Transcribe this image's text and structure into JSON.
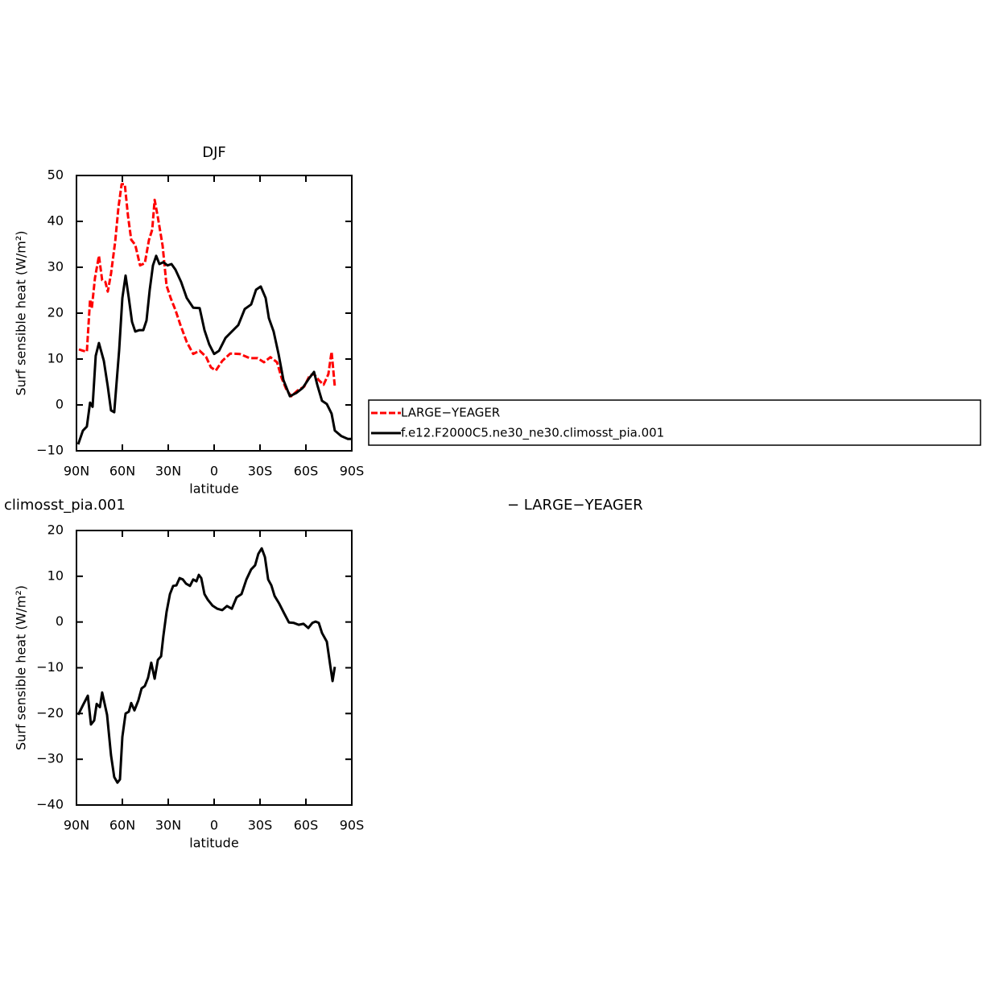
{
  "chart_data": [
    {
      "type": "line",
      "title": "DJF",
      "xlabel": "latitude",
      "ylabel": "Surf sensible heat (W/m²)",
      "xlim": [
        90,
        -90
      ],
      "xticks": [
        {
          "value": 90,
          "label": "90N"
        },
        {
          "value": 60,
          "label": "60N"
        },
        {
          "value": 30,
          "label": "30N"
        },
        0,
        {
          "value": -30,
          "label": "30S"
        },
        {
          "value": -60,
          "label": "60S"
        },
        {
          "value": -90,
          "label": "90S"
        }
      ],
      "ylim": [
        -10,
        50
      ],
      "yticks": [
        {
          "value": -10,
          "label": "−10"
        },
        0,
        10,
        20,
        30,
        40,
        50
      ],
      "legend": "right",
      "series": [
        {
          "name": "LARGE−YEAGER",
          "color": "#ff0000",
          "linestyle": "dashed",
          "x": [
            88.4,
            85.8,
            83.2,
            81.1,
            80,
            77.9,
            75.3,
            73.2,
            71.1,
            69.5,
            67.4,
            64.7,
            62.6,
            60.5,
            58.4,
            56.3,
            54.2,
            51.6,
            48.4,
            45.3,
            42.6,
            40.5,
            38.9,
            36.8,
            33.7,
            31.1,
            28.4,
            25.3,
            22.1,
            17.9,
            13.7,
            9.5,
            5.3,
            2.1,
            -1.1,
            -5.3,
            -10.5,
            -16.8,
            -23.2,
            -28.4,
            -32.6,
            -36.8,
            -41.1,
            -44.2,
            -47.4,
            -50.5,
            -54.7,
            -58.9,
            -62.6,
            -65.3,
            -68.4,
            -71.6,
            -74.7,
            -76.8,
            -78.9
          ],
          "values": [
            12.1,
            11.8,
            11.6,
            23,
            21,
            27.7,
            32.5,
            27.2,
            26.8,
            24.7,
            28.6,
            35.6,
            43,
            48.1,
            48.1,
            41.2,
            36,
            34.9,
            30.4,
            30.9,
            36,
            38.2,
            44.7,
            40.9,
            34.7,
            26,
            23.3,
            20.7,
            17.5,
            13.7,
            11.1,
            11.8,
            10.5,
            8.2,
            7.5,
            9.6,
            11.2,
            11.1,
            10.2,
            10.2,
            9.3,
            10.4,
            9.3,
            5.8,
            3.2,
            1.9,
            3.2,
            4.0,
            6.5,
            6.7,
            5.4,
            4.4,
            6.7,
            11.6,
            4.0
          ]
        },
        {
          "name": "f.e12.F2000C5.ne30_ne30.climosst_pia.001",
          "color": "#000000",
          "linestyle": "solid",
          "x": [
            88.9,
            85.8,
            83.2,
            81.1,
            79.5,
            77.4,
            75.3,
            72.1,
            69.5,
            67.4,
            65.3,
            62.1,
            60,
            57.9,
            55.8,
            53.7,
            51.6,
            48.9,
            46.3,
            44.2,
            42.1,
            40,
            37.9,
            35.8,
            33.2,
            30.5,
            27.9,
            25.3,
            21.6,
            17.9,
            13.7,
            9.5,
            6.3,
            3.2,
            0,
            -3.2,
            -7.4,
            -11.6,
            -15.8,
            -20,
            -24.2,
            -27.4,
            -30.5,
            -33.7,
            -35.8,
            -38.9,
            -42.1,
            -45.3,
            -49.5,
            -53.7,
            -57.9,
            -62.1,
            -65.3,
            -67.4,
            -70.5,
            -73.7,
            -76.8,
            -78.9,
            -83.2,
            -87.4,
            -90
          ],
          "values": [
            -8.6,
            -5.6,
            -4.7,
            0.5,
            -0.4,
            10.7,
            13.5,
            9.6,
            4.0,
            -1.2,
            -1.6,
            11.9,
            23.3,
            28.2,
            23.3,
            18.1,
            16,
            16.3,
            16.3,
            18.4,
            25.1,
            30.4,
            32.5,
            30.7,
            31.1,
            30.4,
            30.7,
            29.5,
            26.8,
            23.3,
            21.2,
            21.1,
            16.3,
            13.2,
            11.1,
            11.8,
            14.6,
            16,
            17.4,
            20.9,
            21.9,
            25.1,
            25.8,
            23.3,
            18.9,
            16,
            11.1,
            5.4,
            1.9,
            2.6,
            3.7,
            5.8,
            7.2,
            4.4,
            0.9,
            0.2,
            -1.9,
            -5.6,
            -6.8,
            -7.4,
            -7.4
          ]
        }
      ]
    },
    {
      "type": "line",
      "title": "climosst_pia.001",
      "subtitle": "− LARGE−YEAGER",
      "xlabel": "latitude",
      "ylabel": "Surf sensible heat (W/m²)",
      "xlim": [
        90,
        -90
      ],
      "xticks": [
        {
          "value": 90,
          "label": "90N"
        },
        {
          "value": 60,
          "label": "60N"
        },
        {
          "value": 30,
          "label": "30N"
        },
        0,
        {
          "value": -30,
          "label": "30S"
        },
        {
          "value": -60,
          "label": "60S"
        },
        {
          "value": -90,
          "label": "90S"
        }
      ],
      "ylim": [
        -40,
        20
      ],
      "yticks": [
        {
          "value": -40,
          "label": "−40"
        },
        {
          "value": -30,
          "label": "−30"
        },
        {
          "value": -20,
          "label": "−20"
        },
        {
          "value": -10,
          "label": "−10"
        },
        0,
        10,
        20
      ],
      "series": [
        {
          "color": "#000000",
          "linestyle": "solid",
          "x": [
            88.9,
            85.8,
            82.6,
            80.5,
            78.4,
            76.8,
            74.7,
            73.2,
            70,
            67.4,
            65.3,
            63.2,
            61.6,
            60,
            57.9,
            55.8,
            54.2,
            52.1,
            49.5,
            47.4,
            45.3,
            43.2,
            41.1,
            38.9,
            36.8,
            34.7,
            33.2,
            31.1,
            28.9,
            26.8,
            24.7,
            22.6,
            20.5,
            18.4,
            15.8,
            13.7,
            11.6,
            10,
            8.4,
            6.3,
            4.2,
            1.1,
            -2.1,
            -5.3,
            -8.4,
            -11.6,
            -14.7,
            -17.9,
            -21.1,
            -24.2,
            -26.8,
            -28.9,
            -31.1,
            -33.2,
            -35.3,
            -37.4,
            -39.5,
            -42.6,
            -45.8,
            -48.9,
            -52.1,
            -55.3,
            -58.4,
            -61.6,
            -64.2,
            -66.3,
            -68.4,
            -70.5,
            -73.7,
            -75.8,
            -77.4,
            -78.9
          ],
          "values": [
            -20.3,
            -18.2,
            -16.1,
            -22.4,
            -21.5,
            -17.9,
            -18.6,
            -15.4,
            -20.3,
            -29.1,
            -33.9,
            -35.1,
            -34.4,
            -25.1,
            -20,
            -19.6,
            -17.7,
            -19.3,
            -17.1,
            -14.5,
            -14,
            -12.2,
            -8.9,
            -12.4,
            -8.3,
            -7.5,
            -3.1,
            2.2,
            6.1,
            7.9,
            8,
            9.6,
            9.3,
            8.4,
            7.9,
            9.3,
            8.9,
            10.3,
            9.6,
            6.1,
            4.9,
            3.6,
            2.9,
            2.6,
            3.5,
            2.9,
            5.4,
            6.1,
            9.3,
            11.5,
            12.4,
            14.9,
            16.1,
            14.2,
            9.3,
            8,
            5.7,
            4,
            1.9,
            -0.1,
            -0.2,
            -0.6,
            -0.4,
            -1.3,
            -0.2,
            0.1,
            -0.2,
            -2.4,
            -4.3,
            -9.2,
            -12.9,
            -9.8
          ]
        }
      ]
    }
  ]
}
